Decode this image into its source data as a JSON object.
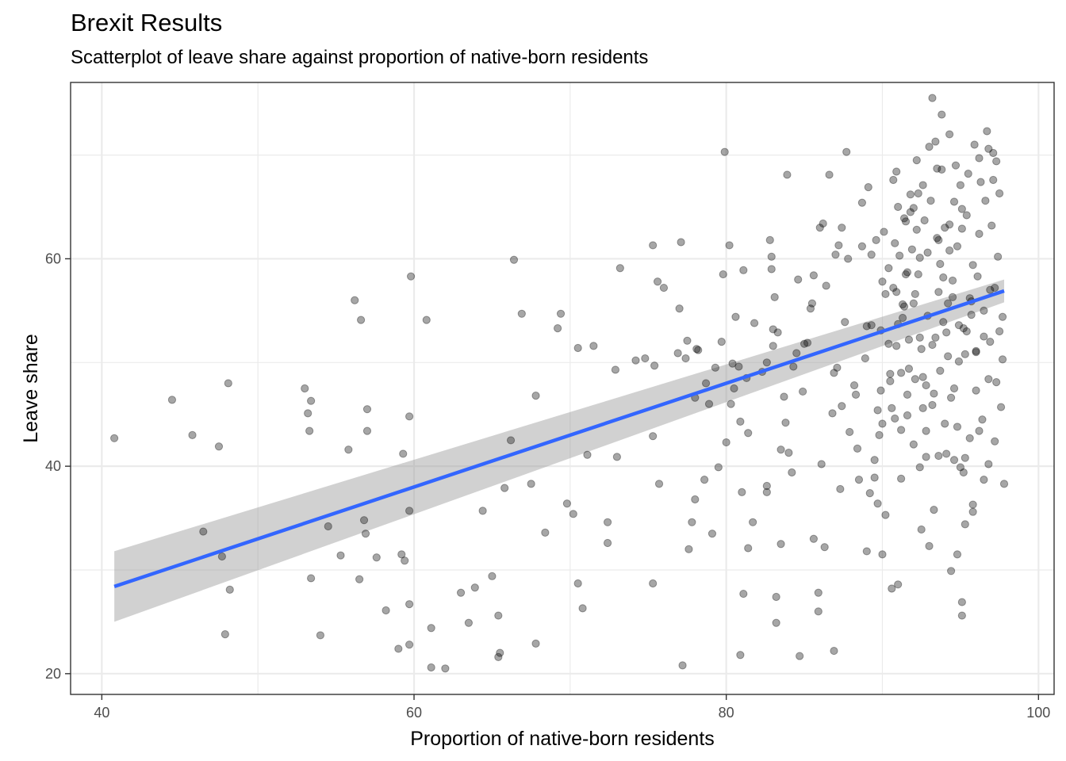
{
  "chart_data": {
    "type": "scatter",
    "title": "Brexit Results",
    "subtitle": "Scatterplot of leave share against proportion of native-born residents",
    "xlabel": "Proportion of native-born residents",
    "ylabel": "Leave share",
    "xlim": [
      38,
      101
    ],
    "ylim": [
      18,
      77
    ],
    "x_ticks": [
      40,
      60,
      80,
      100
    ],
    "y_ticks": [
      20,
      40,
      60
    ],
    "x_tick_labels": [
      "40",
      "60",
      "80",
      "100"
    ],
    "y_tick_labels": [
      "20",
      "40",
      "60"
    ],
    "grid": true,
    "theme": "bw",
    "colors": {
      "points": "#000000",
      "point_opacity": 0.35,
      "fit_line": "#3366FF",
      "ribbon": "#999999",
      "ribbon_opacity": 0.45,
      "grid": "#EBEBEB",
      "panel_border": "#333333"
    },
    "fit_line": {
      "x": [
        40.8,
        97.8
      ],
      "y": [
        28.4,
        56.9
      ]
    },
    "confidence_band": {
      "x": [
        40.8,
        97.8
      ],
      "lower": [
        25.0,
        55.8
      ],
      "upper": [
        31.8,
        58.0
      ]
    },
    "points": [
      [
        40.8,
        42.7
      ],
      [
        44.5,
        46.4
      ],
      [
        45.8,
        43.0
      ],
      [
        46.5,
        33.7
      ],
      [
        47.5,
        41.9
      ],
      [
        47.7,
        31.3
      ],
      [
        47.9,
        23.8
      ],
      [
        48.1,
        48.0
      ],
      [
        48.2,
        28.1
      ],
      [
        53.0,
        47.5
      ],
      [
        53.2,
        45.1
      ],
      [
        53.3,
        43.4
      ],
      [
        53.4,
        46.3
      ],
      [
        53.4,
        29.2
      ],
      [
        54.0,
        23.7
      ],
      [
        54.5,
        34.2
      ],
      [
        55.3,
        31.4
      ],
      [
        55.8,
        41.6
      ],
      [
        56.2,
        56.0
      ],
      [
        56.5,
        29.1
      ],
      [
        56.6,
        54.1
      ],
      [
        56.8,
        34.8
      ],
      [
        56.9,
        33.5
      ],
      [
        57.0,
        45.5
      ],
      [
        57.0,
        43.4
      ],
      [
        57.6,
        31.2
      ],
      [
        58.2,
        26.1
      ],
      [
        59.0,
        22.4
      ],
      [
        59.2,
        31.5
      ],
      [
        59.3,
        41.2
      ],
      [
        59.4,
        30.9
      ],
      [
        59.7,
        26.7
      ],
      [
        59.7,
        22.8
      ],
      [
        59.7,
        35.7
      ],
      [
        59.7,
        44.8
      ],
      [
        59.8,
        58.3
      ],
      [
        60.8,
        54.1
      ],
      [
        61.1,
        24.4
      ],
      [
        61.1,
        20.6
      ],
      [
        62.0,
        20.5
      ],
      [
        63.0,
        27.8
      ],
      [
        63.5,
        24.9
      ],
      [
        63.9,
        28.3
      ],
      [
        64.4,
        35.7
      ],
      [
        65.0,
        29.4
      ],
      [
        65.4,
        25.6
      ],
      [
        65.4,
        21.6
      ],
      [
        65.5,
        22.0
      ],
      [
        65.8,
        37.9
      ],
      [
        66.2,
        42.5
      ],
      [
        66.4,
        59.9
      ],
      [
        66.9,
        54.7
      ],
      [
        67.5,
        38.3
      ],
      [
        67.8,
        46.8
      ],
      [
        67.8,
        22.9
      ],
      [
        68.4,
        33.6
      ],
      [
        69.2,
        53.3
      ],
      [
        69.4,
        54.7
      ],
      [
        69.8,
        36.4
      ],
      [
        70.2,
        35.4
      ],
      [
        70.5,
        51.4
      ],
      [
        70.5,
        28.7
      ],
      [
        70.8,
        26.3
      ],
      [
        71.1,
        41.1
      ],
      [
        71.5,
        51.6
      ],
      [
        72.4,
        34.6
      ],
      [
        72.4,
        32.6
      ],
      [
        72.9,
        49.3
      ],
      [
        73.0,
        40.9
      ],
      [
        73.2,
        59.1
      ],
      [
        74.2,
        50.2
      ],
      [
        74.8,
        50.4
      ],
      [
        75.3,
        61.3
      ],
      [
        75.3,
        42.9
      ],
      [
        75.3,
        28.7
      ],
      [
        75.4,
        49.7
      ],
      [
        75.6,
        57.8
      ],
      [
        75.7,
        38.3
      ],
      [
        76.0,
        57.2
      ],
      [
        76.9,
        50.9
      ],
      [
        77.1,
        61.6
      ],
      [
        77.0,
        55.2
      ],
      [
        77.2,
        20.8
      ],
      [
        77.4,
        50.4
      ],
      [
        77.5,
        52.1
      ],
      [
        77.6,
        32.0
      ],
      [
        78.0,
        46.6
      ],
      [
        78.1,
        51.3
      ],
      [
        78.2,
        51.2
      ],
      [
        78.7,
        48.0
      ],
      [
        78.9,
        46.0
      ],
      [
        79.1,
        33.5
      ],
      [
        79.3,
        49.5
      ],
      [
        79.7,
        52.0
      ],
      [
        79.8,
        58.5
      ],
      [
        79.9,
        70.3
      ],
      [
        80.2,
        61.3
      ],
      [
        80.3,
        46.0
      ],
      [
        80.4,
        49.9
      ],
      [
        80.5,
        47.5
      ],
      [
        80.6,
        54.4
      ],
      [
        80.8,
        49.6
      ],
      [
        80.9,
        21.8
      ],
      [
        80.9,
        44.3
      ],
      [
        81.1,
        27.7
      ],
      [
        81.1,
        58.9
      ],
      [
        81.3,
        48.5
      ],
      [
        81.4,
        32.1
      ],
      [
        81.4,
        43.2
      ],
      [
        81.8,
        53.8
      ],
      [
        82.6,
        37.5
      ],
      [
        82.6,
        38.1
      ],
      [
        82.6,
        50.0
      ],
      [
        82.8,
        61.8
      ],
      [
        82.9,
        60.2
      ],
      [
        83.0,
        53.2
      ],
      [
        83.0,
        51.6
      ],
      [
        83.1,
        56.3
      ],
      [
        83.2,
        24.9
      ],
      [
        83.2,
        27.4
      ],
      [
        83.3,
        52.9
      ],
      [
        83.5,
        41.6
      ],
      [
        83.7,
        46.7
      ],
      [
        83.9,
        68.1
      ],
      [
        84.0,
        41.3
      ],
      [
        84.3,
        49.6
      ],
      [
        84.5,
        50.9
      ],
      [
        84.6,
        58.0
      ],
      [
        84.7,
        21.7
      ],
      [
        85.0,
        51.8
      ],
      [
        85.2,
        51.9
      ],
      [
        85.5,
        55.7
      ],
      [
        85.6,
        58.4
      ],
      [
        85.6,
        33.0
      ],
      [
        85.9,
        26.0
      ],
      [
        85.9,
        27.8
      ],
      [
        86.0,
        63.0
      ],
      [
        86.2,
        63.4
      ],
      [
        86.3,
        32.2
      ],
      [
        86.6,
        68.1
      ],
      [
        86.8,
        45.1
      ],
      [
        86.9,
        22.2
      ],
      [
        87.0,
        60.4
      ],
      [
        87.2,
        61.3
      ],
      [
        87.3,
        37.8
      ],
      [
        87.4,
        63.0
      ],
      [
        87.7,
        70.3
      ],
      [
        87.8,
        60.0
      ],
      [
        88.2,
        47.8
      ],
      [
        88.3,
        46.9
      ],
      [
        88.7,
        65.4
      ],
      [
        88.7,
        61.2
      ],
      [
        89.0,
        53.5
      ],
      [
        89.0,
        31.8
      ],
      [
        89.3,
        60.4
      ],
      [
        89.3,
        53.6
      ],
      [
        89.5,
        40.6
      ],
      [
        89.5,
        38.9
      ],
      [
        89.7,
        45.4
      ],
      [
        89.8,
        43.0
      ],
      [
        89.9,
        53.1
      ],
      [
        89.9,
        47.3
      ],
      [
        90.0,
        44.1
      ],
      [
        90.0,
        57.8
      ],
      [
        90.2,
        56.6
      ],
      [
        90.2,
        35.3
      ],
      [
        90.4,
        51.8
      ],
      [
        90.5,
        48.2
      ],
      [
        90.7,
        67.6
      ],
      [
        90.9,
        68.4
      ],
      [
        91.0,
        65.0
      ],
      [
        91.2,
        38.8
      ],
      [
        91.2,
        43.5
      ],
      [
        91.4,
        55.4
      ],
      [
        91.5,
        58.5
      ],
      [
        91.6,
        44.9
      ],
      [
        91.8,
        64.5
      ],
      [
        92.0,
        64.9
      ],
      [
        92.2,
        62.8
      ],
      [
        92.3,
        66.3
      ],
      [
        92.4,
        60.1
      ],
      [
        92.6,
        45.6
      ],
      [
        92.6,
        48.6
      ],
      [
        92.8,
        40.9
      ],
      [
        93.0,
        70.8
      ],
      [
        93.2,
        75.5
      ],
      [
        93.5,
        68.7
      ],
      [
        93.6,
        61.8
      ],
      [
        93.7,
        59.5
      ],
      [
        93.8,
        68.6
      ],
      [
        94.0,
        63.0
      ],
      [
        94.1,
        41.2
      ],
      [
        94.3,
        63.3
      ],
      [
        94.5,
        57.9
      ],
      [
        94.6,
        40.6
      ],
      [
        94.8,
        61.2
      ],
      [
        95.0,
        39.9
      ],
      [
        95.3,
        40.8
      ],
      [
        95.4,
        53.0
      ],
      [
        95.7,
        54.6
      ],
      [
        95.8,
        36.3
      ],
      [
        96.0,
        51.1
      ],
      [
        96.2,
        43.4
      ],
      [
        96.5,
        38.7
      ],
      [
        96.8,
        48.4
      ],
      [
        97.1,
        67.6
      ],
      [
        97.2,
        57.2
      ],
      [
        97.3,
        69.4
      ],
      [
        97.5,
        53.0
      ],
      [
        97.7,
        54.4
      ],
      [
        97.8,
        38.3
      ],
      [
        96.2,
        69.7
      ],
      [
        96.8,
        70.6
      ],
      [
        95.1,
        62.9
      ],
      [
        94.2,
        55.7
      ],
      [
        93.4,
        52.4
      ],
      [
        92.9,
        60.6
      ],
      [
        92.1,
        56.6
      ],
      [
        91.7,
        49.4
      ],
      [
        91.0,
        53.7
      ],
      [
        90.6,
        45.6
      ],
      [
        89.6,
        61.8
      ],
      [
        89.1,
        66.9
      ],
      [
        88.9,
        50.4
      ],
      [
        88.4,
        41.7
      ],
      [
        87.6,
        53.9
      ],
      [
        87.1,
        49.5
      ],
      [
        86.4,
        57.4
      ],
      [
        86.1,
        40.2
      ],
      [
        85.4,
        55.2
      ],
      [
        84.9,
        47.2
      ],
      [
        84.2,
        39.4
      ],
      [
        83.8,
        44.2
      ],
      [
        83.5,
        32.5
      ],
      [
        82.9,
        59.0
      ],
      [
        82.3,
        49.1
      ],
      [
        81.7,
        34.6
      ],
      [
        81.0,
        37.5
      ],
      [
        80.0,
        42.3
      ],
      [
        79.5,
        39.9
      ],
      [
        78.6,
        38.7
      ],
      [
        78.0,
        36.8
      ],
      [
        77.8,
        34.6
      ],
      [
        92.5,
        33.9
      ],
      [
        93.0,
        32.3
      ],
      [
        93.3,
        35.8
      ],
      [
        94.4,
        29.9
      ],
      [
        94.8,
        31.5
      ],
      [
        95.1,
        26.9
      ],
      [
        95.1,
        25.6
      ],
      [
        95.3,
        34.4
      ],
      [
        95.8,
        35.6
      ],
      [
        91.0,
        28.6
      ],
      [
        90.6,
        28.2
      ],
      [
        90.0,
        31.5
      ],
      [
        89.7,
        36.4
      ],
      [
        89.2,
        37.4
      ],
      [
        88.5,
        38.7
      ],
      [
        87.9,
        43.3
      ],
      [
        87.4,
        45.8
      ],
      [
        86.9,
        49.0
      ],
      [
        96.9,
        57.0
      ],
      [
        96.5,
        52.5
      ],
      [
        96.0,
        51.0
      ],
      [
        95.6,
        56.2
      ],
      [
        95.2,
        53.3
      ],
      [
        94.9,
        50.1
      ],
      [
        94.6,
        47.5
      ],
      [
        94.2,
        50.6
      ],
      [
        93.9,
        53.9
      ],
      [
        93.6,
        56.8
      ],
      [
        93.2,
        51.7
      ],
      [
        92.8,
        47.8
      ],
      [
        92.4,
        52.4
      ],
      [
        92.0,
        55.7
      ],
      [
        91.6,
        58.7
      ],
      [
        91.3,
        54.3
      ],
      [
        90.9,
        51.6
      ],
      [
        90.5,
        48.9
      ],
      [
        97.4,
        60.2
      ],
      [
        97.0,
        63.2
      ],
      [
        96.6,
        65.6
      ],
      [
        96.2,
        62.4
      ],
      [
        95.8,
        59.4
      ],
      [
        95.4,
        64.2
      ],
      [
        95.0,
        67.1
      ],
      [
        94.6,
        65.5
      ],
      [
        94.3,
        60.8
      ],
      [
        93.9,
        58.2
      ],
      [
        93.5,
        62.0
      ],
      [
        93.1,
        65.6
      ],
      [
        92.7,
        63.7
      ],
      [
        92.3,
        58.5
      ],
      [
        91.9,
        60.9
      ],
      [
        91.5,
        63.6
      ],
      [
        91.1,
        60.3
      ],
      [
        90.7,
        57.2
      ],
      [
        97.6,
        45.7
      ],
      [
        97.2,
        42.4
      ],
      [
        96.8,
        40.2
      ],
      [
        96.4,
        44.5
      ],
      [
        96.0,
        47.3
      ],
      [
        95.6,
        42.7
      ],
      [
        95.2,
        39.4
      ],
      [
        94.8,
        43.8
      ],
      [
        94.4,
        46.6
      ],
      [
        94.0,
        44.1
      ],
      [
        93.6,
        41.0
      ],
      [
        93.2,
        45.9
      ],
      [
        92.8,
        43.4
      ],
      [
        92.4,
        39.9
      ],
      [
        92.0,
        42.1
      ],
      [
        91.6,
        46.9
      ],
      [
        91.2,
        49.0
      ],
      [
        90.8,
        44.6
      ],
      [
        97.7,
        50.3
      ],
      [
        97.3,
        48.1
      ],
      [
        96.9,
        52.0
      ],
      [
        96.5,
        55.0
      ],
      [
        96.1,
        58.3
      ],
      [
        95.7,
        55.9
      ],
      [
        95.3,
        50.8
      ],
      [
        94.9,
        53.6
      ],
      [
        94.5,
        56.3
      ],
      [
        94.1,
        52.9
      ],
      [
        93.7,
        49.2
      ],
      [
        93.3,
        47.0
      ],
      [
        92.9,
        54.5
      ],
      [
        92.5,
        51.3
      ],
      [
        92.1,
        48.4
      ],
      [
        91.7,
        52.2
      ],
      [
        91.3,
        55.6
      ],
      [
        90.9,
        56.8
      ],
      [
        97.5,
        66.3
      ],
      [
        97.1,
        70.2
      ],
      [
        96.7,
        72.3
      ],
      [
        96.3,
        67.4
      ],
      [
        95.9,
        71.0
      ],
      [
        95.5,
        68.2
      ],
      [
        95.1,
        64.8
      ],
      [
        94.7,
        69.0
      ],
      [
        94.3,
        72.0
      ],
      [
        93.8,
        73.9
      ],
      [
        93.4,
        71.3
      ],
      [
        92.6,
        67.1
      ],
      [
        92.2,
        69.5
      ],
      [
        91.8,
        66.2
      ],
      [
        91.4,
        63.9
      ],
      [
        90.8,
        61.5
      ],
      [
        90.4,
        59.1
      ],
      [
        90.1,
        62.6
      ]
    ]
  }
}
